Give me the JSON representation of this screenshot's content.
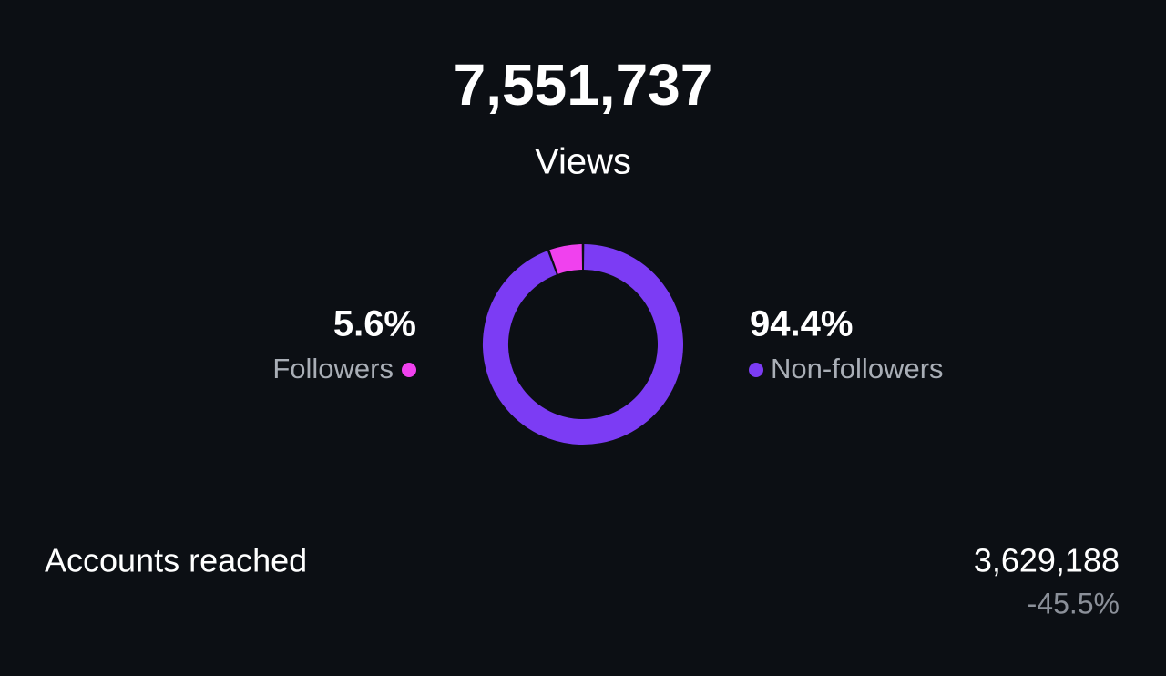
{
  "header": {
    "total": "7,551,737",
    "label": "Views"
  },
  "chart_data": {
    "type": "pie",
    "categories": [
      "Followers",
      "Non-followers"
    ],
    "values": [
      5.6,
      94.4
    ],
    "value_labels": [
      "5.6%",
      "94.4%"
    ],
    "colors": [
      "#f041ee",
      "#7c3cf4"
    ]
  },
  "metric": {
    "label": "Accounts reached",
    "value": "3,629,188",
    "change": "-45.5%"
  }
}
